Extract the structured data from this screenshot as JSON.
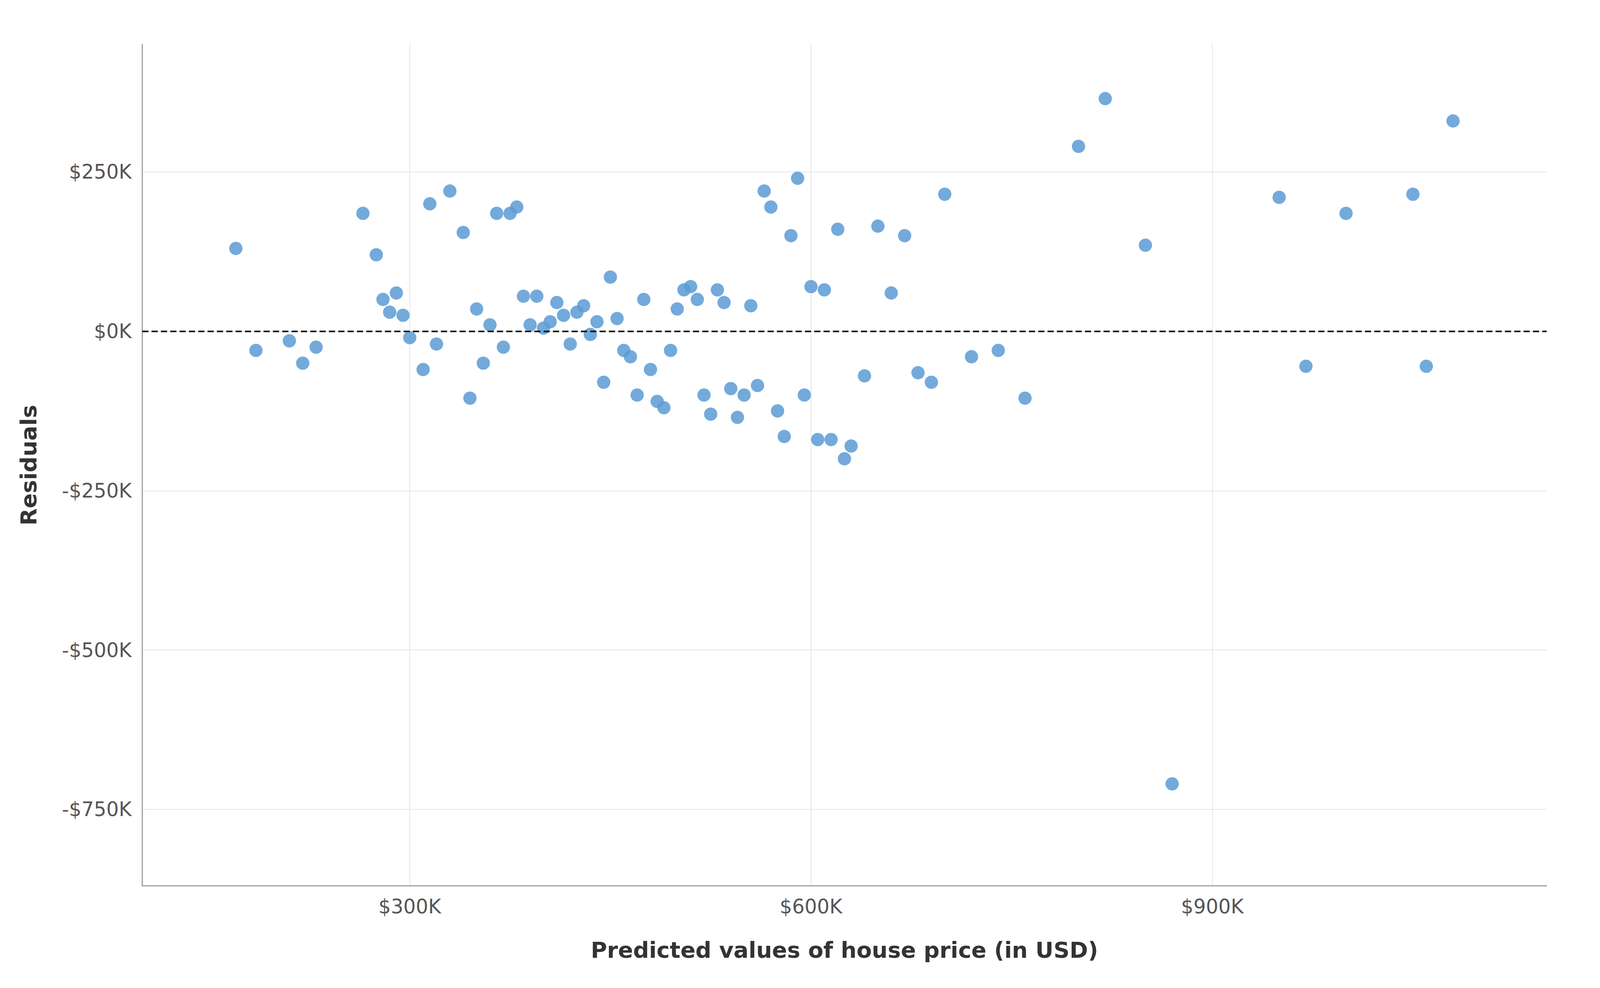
{
  "chart_data": {
    "type": "scatter",
    "x": [
      170000,
      185000,
      210000,
      220000,
      230000,
      265000,
      275000,
      280000,
      285000,
      290000,
      295000,
      300000,
      310000,
      315000,
      320000,
      330000,
      340000,
      345000,
      350000,
      355000,
      360000,
      365000,
      370000,
      375000,
      380000,
      385000,
      390000,
      395000,
      400000,
      405000,
      410000,
      415000,
      420000,
      425000,
      430000,
      435000,
      440000,
      445000,
      450000,
      455000,
      460000,
      465000,
      470000,
      475000,
      480000,
      485000,
      490000,
      495000,
      500000,
      505000,
      510000,
      515000,
      520000,
      525000,
      530000,
      535000,
      540000,
      545000,
      550000,
      555000,
      560000,
      565000,
      570000,
      575000,
      580000,
      585000,
      590000,
      595000,
      600000,
      605000,
      610000,
      615000,
      620000,
      625000,
      630000,
      640000,
      650000,
      660000,
      670000,
      680000,
      690000,
      700000,
      720000,
      740000,
      760000,
      800000,
      820000,
      850000,
      870000,
      950000,
      970000,
      1000000,
      1050000,
      1060000,
      1080000
    ],
    "values": [
      130000,
      -30000,
      -15000,
      -50000,
      -25000,
      185000,
      120000,
      50000,
      30000,
      60000,
      25000,
      -10000,
      -60000,
      200000,
      -20000,
      220000,
      155000,
      -105000,
      35000,
      -50000,
      10000,
      185000,
      -25000,
      185000,
      195000,
      55000,
      10000,
      55000,
      5000,
      15000,
      45000,
      25000,
      -20000,
      30000,
      40000,
      -5000,
      15000,
      -80000,
      85000,
      20000,
      -30000,
      -40000,
      -100000,
      50000,
      -60000,
      -110000,
      -120000,
      -30000,
      35000,
      65000,
      70000,
      50000,
      -100000,
      -130000,
      65000,
      45000,
      -90000,
      -135000,
      -100000,
      40000,
      -85000,
      220000,
      195000,
      -125000,
      -165000,
      150000,
      240000,
      -100000,
      70000,
      -170000,
      65000,
      -170000,
      160000,
      -200000,
      -180000,
      -70000,
      165000,
      60000,
      150000,
      -65000,
      -80000,
      215000,
      -40000,
      -30000,
      -105000,
      290000,
      365000,
      135000,
      -710000,
      210000,
      -55000,
      185000,
      215000,
      -55000,
      330000
    ],
    "color": "#5b9bd5",
    "xlabel": "Predicted values of house price (in USD)",
    "ylabel": "Residuals",
    "xlim": [
      100000,
      1150000
    ],
    "ylim": [
      -870000,
      450000
    ],
    "xticks": [
      {
        "value": 300000,
        "label": "$300K"
      },
      {
        "value": 600000,
        "label": "$600K"
      },
      {
        "value": 900000,
        "label": "$900K"
      }
    ],
    "yticks": [
      {
        "value": 250000,
        "label": "$250K"
      },
      {
        "value": 0,
        "label": "$0K"
      },
      {
        "value": -250000,
        "label": "-$250K"
      },
      {
        "value": -500000,
        "label": "-$500K"
      },
      {
        "value": -750000,
        "label": "-$750K"
      }
    ],
    "hline": {
      "y": 0,
      "color": "#111111",
      "line_style": "dashed"
    },
    "grid": true
  }
}
